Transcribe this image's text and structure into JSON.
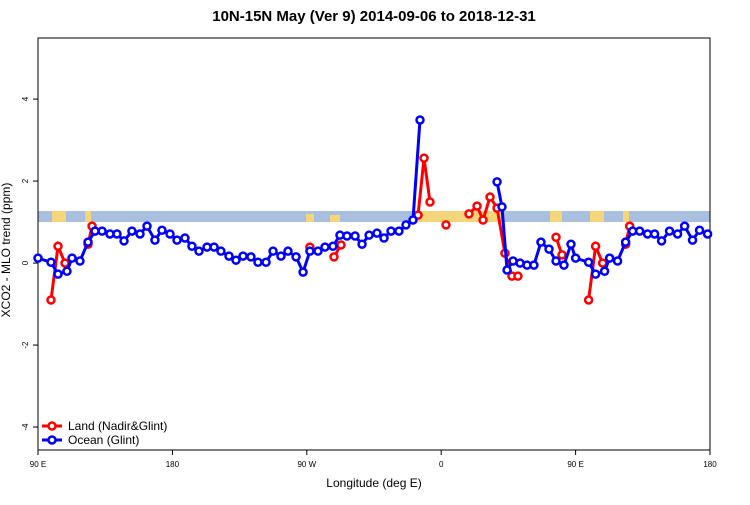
{
  "chart_data": {
    "type": "line",
    "title": "10N-15N May (Ver 9)   2014-09-06 to 2018-12-31",
    "x_label": "Longitude (deg E)",
    "y_label": "XCO2 - MLO trend (ppm)",
    "xlim": [
      90,
      540
    ],
    "ylim": [
      -4.56,
      5.49
    ],
    "xticks": [
      {
        "value": 90,
        "label": "90 E"
      },
      {
        "value": 180,
        "label": "180"
      },
      {
        "value": 270,
        "label": "90 W"
      },
      {
        "value": 360,
        "label": "0"
      },
      {
        "value": 450,
        "label": "90 E"
      },
      {
        "value": 540,
        "label": "180"
      }
    ],
    "yticks": [
      -4,
      -2,
      0,
      2,
      4
    ],
    "legend": "bottom-left",
    "series": [
      {
        "name": "Land (Nadir&Glint)",
        "color": "#ff0000",
        "x": [
          98.7,
          103.4,
          108.1,
          null,
          123.5,
          126.2,
          null,
          272.1,
          null,
          288.2,
          292.9,
          null,
          344.5,
          348.5,
          352.5,
          null,
          363.2,
          null,
          378.6,
          384,
          388,
          392.7,
          397.4,
          402.7,
          407.4,
          411.4,
          null,
          436.9,
          440.9,
          null,
          458.7,
          463.4,
          468.1,
          null,
          483.5,
          486.2
        ],
        "values": [
          -0.9,
          0.41,
          0,
          null,
          0.46,
          0.9,
          null,
          0.39,
          null,
          0.15,
          0.44,
          null,
          1.17,
          2.56,
          1.49,
          null,
          0.93,
          null,
          1.2,
          1.39,
          1.05,
          1.61,
          1.34,
          0.24,
          -0.32,
          -0.32,
          null,
          0.63,
          0.2,
          null,
          -0.9,
          0.41,
          0,
          null,
          0.46,
          0.9
        ]
      },
      {
        "name": "Ocean (Glint)",
        "color": "#0000ff",
        "x": [
          90,
          98.7,
          103.4,
          109.4,
          112.8,
          118.1,
          123.5,
          128.2,
          132.9,
          138.2,
          142.9,
          147.6,
          152.9,
          158.3,
          163,
          168.3,
          173,
          178.4,
          183.1,
          188.4,
          193.1,
          197.8,
          203.2,
          207.9,
          212.5,
          217.9,
          222.6,
          227.3,
          232.6,
          237.3,
          242.7,
          247.4,
          252.7,
          257.4,
          262.8,
          267.5,
          272.1,
          277.5,
          282.2,
          287.5,
          292.2,
          296.9,
          302.3,
          307,
          311.7,
          317,
          321.7,
          326.4,
          331.7,
          336.4,
          341.1,
          345.8,
          null,
          397.4,
          400.7,
          404.1,
          408.1,
          412.8,
          417.5,
          422.1,
          426.8,
          432.2,
          436.9,
          442.2,
          446.9,
          450,
          458.7,
          463.4,
          469.4,
          472.8,
          478.1,
          483.5,
          488.2,
          492.9,
          498.2,
          502.9,
          507.6,
          512.9,
          518.3,
          523,
          528.3,
          533,
          538.4
        ],
        "values": [
          0.12,
          0.02,
          -0.27,
          -0.2,
          0.12,
          0.05,
          0.51,
          0.78,
          0.78,
          0.71,
          0.71,
          0.54,
          0.78,
          0.71,
          0.9,
          0.56,
          0.8,
          0.71,
          0.56,
          0.61,
          0.41,
          0.29,
          0.39,
          0.39,
          0.29,
          0.17,
          0.07,
          0.17,
          0.15,
          0.02,
          0.02,
          0.29,
          0.17,
          0.29,
          0.15,
          -0.22,
          0.29,
          0.29,
          0.39,
          0.41,
          0.68,
          0.66,
          0.66,
          0.46,
          0.68,
          0.73,
          0.61,
          0.78,
          0.78,
          0.93,
          1.05,
          3.49,
          null,
          1.98,
          1.37,
          -0.17,
          0.05,
          0,
          -0.05,
          -0.05,
          0.51,
          0.34,
          0.05,
          -0.05,
          0.46,
          0.12,
          0.02,
          -0.27,
          -0.2,
          0.12,
          0.05,
          0.51,
          0.78,
          0.78,
          0.71,
          0.71,
          0.54,
          0.78,
          0.71,
          0.9,
          0.56,
          0.8,
          0.71
        ]
      }
    ]
  }
}
